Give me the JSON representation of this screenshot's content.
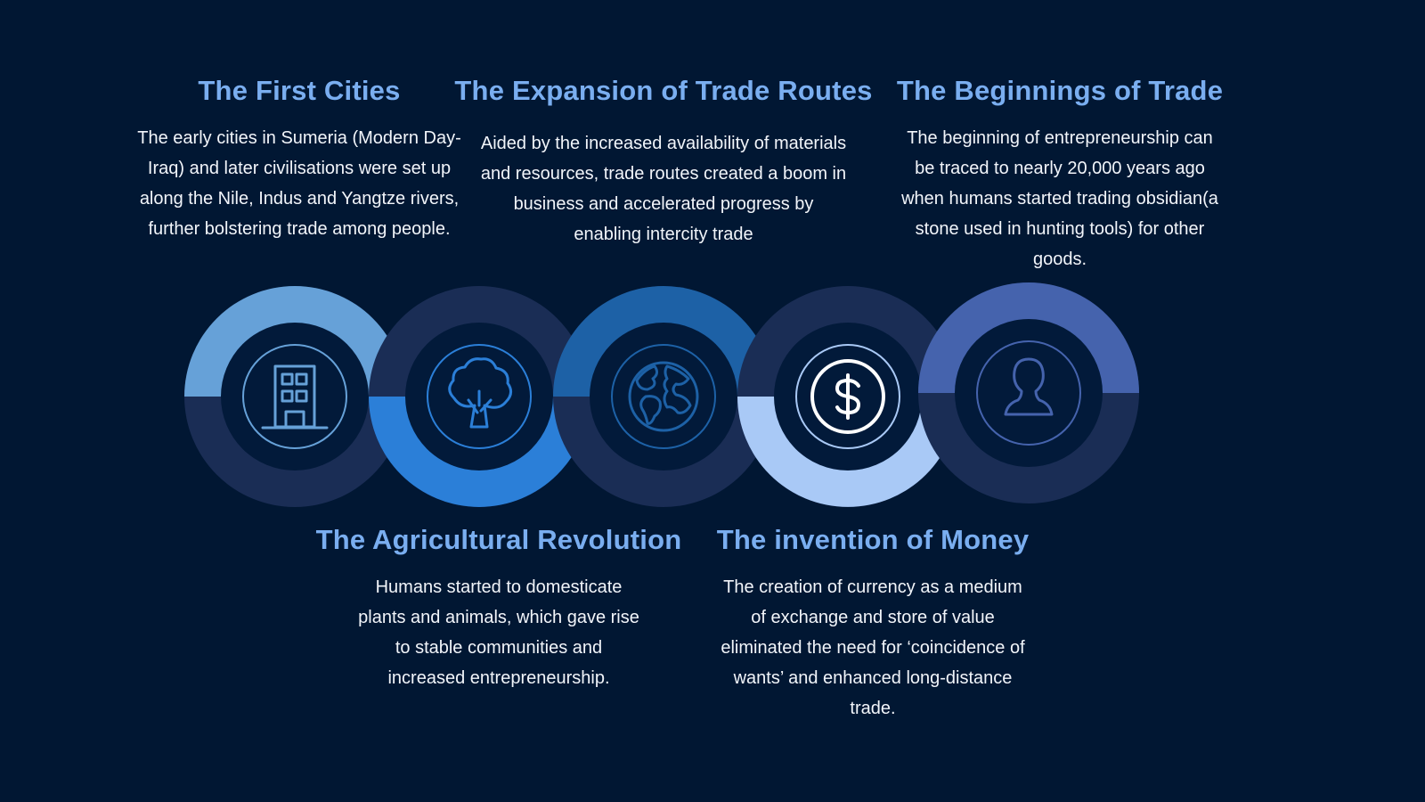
{
  "colors": {
    "background": "#011733",
    "ring_track": "#1a2d55",
    "ring_inner": "#021a3a",
    "heading": "#7aaef0"
  },
  "milestones": [
    {
      "id": "first",
      "title": "The First Cities",
      "body": "The early cities in Sumeria (Modern Day-Iraq) and later civilisations were set up along the Nile, Indus and Yangtze rivers, further bolstering trade among people.",
      "icon": "building-icon",
      "accent": "#66a1d8",
      "highlight": "top"
    },
    {
      "id": "agri",
      "title": "The Agricultural Revolution",
      "body": "Humans started to domesticate plants and animals, which gave rise to stable communities and increased entrepreneurship.",
      "icon": "tree-icon",
      "accent": "#2b7fd8",
      "highlight": "bottom"
    },
    {
      "id": "expand",
      "title": "The Expansion of Trade Routes",
      "body": "Aided by the increased availability of materials and resources, trade routes created a boom in business and accelerated progress by enabling intercity trade",
      "icon": "globe-icon",
      "accent": "#1d61a6",
      "highlight": "top"
    },
    {
      "id": "money",
      "title": "The invention of Money",
      "body": "The creation of currency as a medium of exchange and store of value eliminated the need for ‘coincidence of wants’ and enhanced long-distance trade.",
      "icon": "dollar-icon",
      "accent": "#a9c9f6",
      "highlight": "bottom"
    },
    {
      "id": "begin",
      "title": "The Beginnings of Trade",
      "body": "The beginning of entrepreneurship can be traced to nearly 20,000 years ago when humans started trading obsidian(a stone used in hunting tools) for other goods.",
      "icon": "person-icon",
      "accent": "#4563ad",
      "highlight": "top"
    }
  ]
}
